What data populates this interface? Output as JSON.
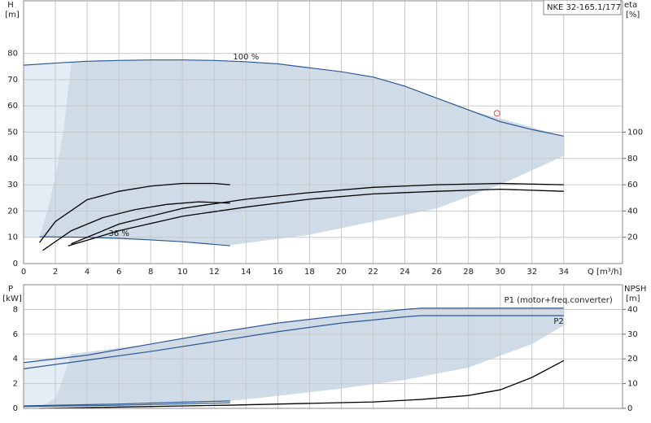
{
  "chart_data": [
    {
      "type": "line",
      "annotation": "NKE 32-165.1/177",
      "ylabel": "H",
      "yunit": "[m]",
      "y2label": "eta",
      "y2unit": "[%]",
      "xlabel": "Q [m³/h]",
      "xlim": [
        0,
        37.7
      ],
      "xticks": [
        0,
        2,
        4,
        6,
        8,
        10,
        12,
        14,
        16,
        18,
        20,
        22,
        24,
        26,
        28,
        30,
        32,
        34
      ],
      "show_xtick_labels": true,
      "ylim": [
        0,
        100
      ],
      "yticks": [
        0,
        10,
        20,
        30,
        40,
        50,
        60,
        70,
        80
      ],
      "y2lim": [
        0,
        200
      ],
      "y2ticks": [
        20,
        40,
        60,
        80,
        100
      ],
      "grid": true,
      "regions": [
        {
          "color": "#e4edf6",
          "x": [
            0,
            1,
            1.5,
            2,
            2.5,
            3,
            0
          ],
          "values": [
            10,
            10.2,
            20,
            33,
            50,
            76.6,
            75.5
          ]
        },
        {
          "color": "#cfdbe7",
          "x": [
            3,
            6,
            10,
            14,
            18,
            22,
            24,
            28,
            34,
            34,
            30,
            26,
            22,
            18,
            13,
            10,
            6,
            1,
            1.5,
            2,
            2.5
          ],
          "values": [
            76.6,
            77.3,
            77.5,
            76.8,
            74.5,
            71,
            67.5,
            58.5,
            48.5,
            41,
            30,
            21,
            16,
            11,
            7,
            8.3,
            9.6,
            10.2,
            20,
            33,
            50
          ]
        }
      ],
      "series": [
        {
          "name": "100 %",
          "color": "#2a5794",
          "x": [
            0,
            2,
            4,
            6,
            8,
            10,
            12,
            14,
            16,
            18,
            20,
            22,
            24,
            26,
            28,
            30,
            32,
            34
          ],
          "values": [
            75.5,
            76.3,
            77,
            77.3,
            77.5,
            77.5,
            77.3,
            76.8,
            76,
            74.5,
            73,
            71,
            67.5,
            63,
            58.5,
            54,
            51,
            48.5
          ]
        },
        {
          "name": "36 %",
          "color": "#2a5794",
          "x": [
            1,
            4,
            6,
            8,
            10,
            12,
            13
          ],
          "values": [
            10.2,
            10,
            9.6,
            9,
            8.3,
            7.3,
            6.8
          ]
        },
        {
          "color": "#000000",
          "axis": "y2",
          "x": [
            1,
            2,
            4,
            6,
            8,
            10,
            12,
            13
          ],
          "values": [
            16,
            32,
            48.6,
            55,
            59,
            61,
            61,
            60
          ]
        },
        {
          "color": "#000000",
          "axis": "y2",
          "x": [
            1.2,
            3,
            5,
            7,
            9,
            11,
            13
          ],
          "values": [
            10,
            25,
            35,
            41,
            45,
            47,
            46
          ]
        },
        {
          "color": "#000000",
          "axis": "y2",
          "x": [
            3,
            6,
            10,
            14,
            18,
            22,
            26,
            30,
            34
          ],
          "values": [
            15,
            30,
            42,
            49,
            54,
            58,
            60,
            61,
            60
          ]
        },
        {
          "color": "#000000",
          "axis": "y2",
          "x": [
            2.8,
            6,
            10,
            14,
            18,
            22,
            26,
            30,
            34
          ],
          "values": [
            13.5,
            25,
            36,
            43,
            49,
            53,
            55,
            56.6,
            55
          ]
        }
      ],
      "duty_point": {
        "x": 29.8,
        "y": 57.2,
        "color": "#e05050"
      }
    },
    {
      "type": "line",
      "ylabel": "P",
      "yunit": "[kW]",
      "y2label": "NPSH",
      "y2unit": "[m]",
      "xlim": [
        0,
        37.7
      ],
      "xticks": [
        0,
        2,
        4,
        6,
        8,
        10,
        12,
        14,
        16,
        18,
        20,
        22,
        24,
        26,
        28,
        30,
        32,
        34
      ],
      "show_xtick_labels": false,
      "ylim": [
        0,
        10
      ],
      "yticks": [
        0,
        2,
        4,
        6,
        8
      ],
      "y2lim": [
        0,
        50
      ],
      "y2ticks": [
        0,
        10,
        20,
        30,
        40
      ],
      "grid": true,
      "regions": [
        {
          "color": "#e4edf6",
          "x": [
            0,
            1,
            2,
            2.5,
            3,
            0
          ],
          "values": [
            0.1,
            0.1,
            0.8,
            2.5,
            4.4,
            3.7
          ]
        },
        {
          "color": "#cfdbe7",
          "x": [
            3,
            8,
            12,
            16,
            20,
            24,
            25,
            34,
            34,
            32,
            28,
            24,
            20,
            16,
            13,
            8,
            1,
            2,
            2.5
          ],
          "values": [
            4.4,
            5.2,
            6.1,
            6.9,
            7.5,
            8.0,
            8.1,
            8.1,
            6.7,
            5.2,
            3.3,
            2.3,
            1.6,
            1.0,
            0.6,
            0.4,
            0.1,
            0.8,
            2.5
          ]
        }
      ],
      "series": [
        {
          "name": "P1 (motor+freq.converter)",
          "color": "#2a5794",
          "x": [
            0,
            4,
            8,
            12,
            16,
            20,
            24,
            25,
            34
          ],
          "values": [
            3.7,
            4.3,
            5.2,
            6.1,
            6.9,
            7.5,
            8.0,
            8.1,
            8.1
          ]
        },
        {
          "name": "P2",
          "color": "#2a5794",
          "x": [
            0,
            4,
            8,
            12,
            16,
            20,
            24,
            25,
            34
          ],
          "values": [
            3.2,
            3.9,
            4.6,
            5.4,
            6.2,
            6.9,
            7.4,
            7.5,
            7.5
          ]
        },
        {
          "color": "#2a5794",
          "x": [
            0,
            6,
            10,
            13
          ],
          "values": [
            0.2,
            0.35,
            0.5,
            0.6
          ]
        },
        {
          "color": "#2a5794",
          "x": [
            0,
            6,
            13
          ],
          "values": [
            0.15,
            0.25,
            0.45
          ]
        },
        {
          "color": "#000000",
          "axis": "y2",
          "x": [
            1,
            13,
            22,
            25,
            28,
            30,
            32,
            34
          ],
          "values": [
            0,
            1.3,
            2.6,
            3.6,
            5.2,
            7.5,
            12.5,
            19.3
          ]
        }
      ]
    }
  ]
}
